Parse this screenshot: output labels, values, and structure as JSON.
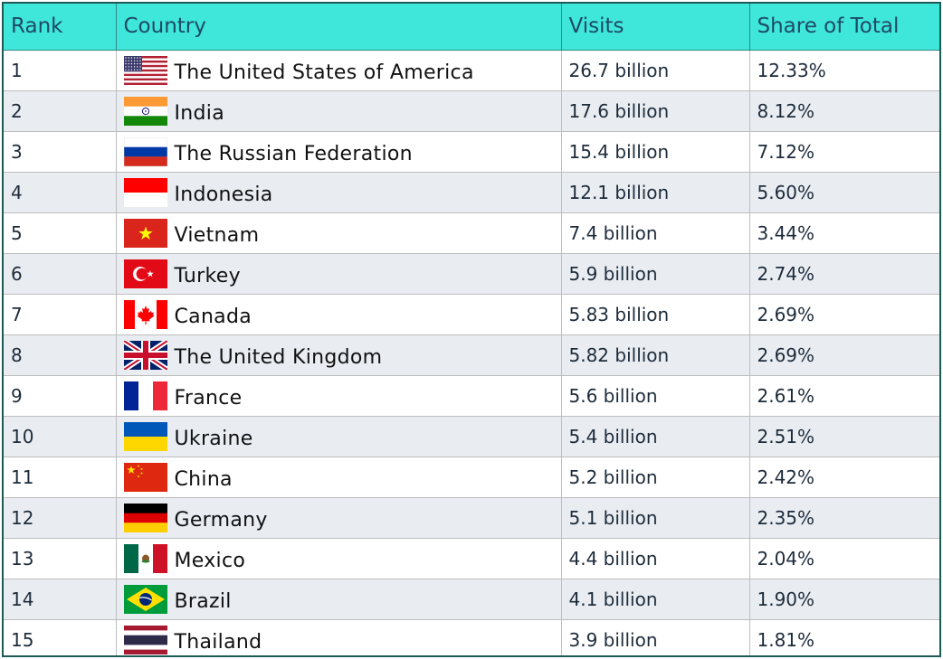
{
  "chart_data": {
    "type": "table",
    "columns": [
      "Rank",
      "Country",
      "Visits",
      "Share of Total"
    ],
    "rows": [
      {
        "rank": "1",
        "country": "The United States of America",
        "visits": "26.7 billion",
        "share": "12.33%",
        "flag_icon": "us-flag-icon"
      },
      {
        "rank": "2",
        "country": "India",
        "visits": "17.6 billion",
        "share": "8.12%",
        "flag_icon": "india-flag-icon"
      },
      {
        "rank": "3",
        "country": "The Russian Federation",
        "visits": "15.4 billion",
        "share": "7.12%",
        "flag_icon": "russia-flag-icon"
      },
      {
        "rank": "4",
        "country": "Indonesia",
        "visits": "12.1 billion",
        "share": "5.60%",
        "flag_icon": "indonesia-flag-icon"
      },
      {
        "rank": "5",
        "country": "Vietnam",
        "visits": "7.4 billion",
        "share": "3.44%",
        "flag_icon": "vietnam-flag-icon"
      },
      {
        "rank": "6",
        "country": "Turkey",
        "visits": "5.9 billion",
        "share": "2.74%",
        "flag_icon": "turkey-flag-icon"
      },
      {
        "rank": "7",
        "country": "Canada",
        "visits": "5.83 billion",
        "share": "2.69%",
        "flag_icon": "canada-flag-icon"
      },
      {
        "rank": "8",
        "country": "The United Kingdom",
        "visits": "5.82 billion",
        "share": "2.69%",
        "flag_icon": "uk-flag-icon"
      },
      {
        "rank": "9",
        "country": "France",
        "visits": "5.6 billion",
        "share": "2.61%",
        "flag_icon": "france-flag-icon"
      },
      {
        "rank": "10",
        "country": "Ukraine",
        "visits": "5.4 billion",
        "share": "2.51%",
        "flag_icon": "ukraine-flag-icon"
      },
      {
        "rank": "11",
        "country": "China",
        "visits": "5.2 billion",
        "share": "2.42%",
        "flag_icon": "china-flag-icon"
      },
      {
        "rank": "12",
        "country": "Germany",
        "visits": "5.1 billion",
        "share": "2.35%",
        "flag_icon": "germany-flag-icon"
      },
      {
        "rank": "13",
        "country": "Mexico",
        "visits": "4.4 billion",
        "share": "2.04%",
        "flag_icon": "mexico-flag-icon"
      },
      {
        "rank": "14",
        "country": "Brazil",
        "visits": "4.1 billion",
        "share": "1.90%",
        "flag_icon": "brazil-flag-icon"
      },
      {
        "rank": "15",
        "country": "Thailand",
        "visits": "3.9 billion",
        "share": "1.81%",
        "flag_icon": "thailand-flag-icon"
      }
    ]
  },
  "colors": {
    "header_bg": "#3fe6da",
    "header_text": "#1d4a66",
    "row_alt_bg": "#e9edf2",
    "border": "#1c5a58"
  }
}
